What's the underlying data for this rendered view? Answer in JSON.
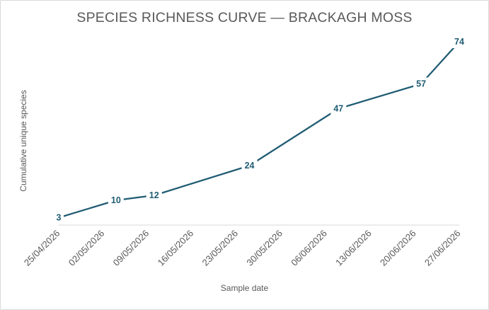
{
  "chart_data": {
    "type": "line",
    "title": "SPECIES RICHNESS CURVE — BRACKAGH MOSS",
    "xlabel": "Sample date",
    "ylabel": "Cumulative unique species",
    "x_tick_labels": [
      "25/04/2026",
      "02/05/2026",
      "09/05/2026",
      "16/05/2026",
      "23/05/2026",
      "30/05/2026",
      "06/06/2026",
      "13/06/2026",
      "20/06/2026",
      "27/06/2026"
    ],
    "xlim": [
      "25/04/2026",
      "27/06/2026"
    ],
    "ylim": [
      0,
      80
    ],
    "grid": false,
    "legend": "none",
    "line_color": "#1f5c73",
    "series": [
      {
        "points": [
          {
            "x": "25/04/2026",
            "y": 3,
            "label": "3"
          },
          {
            "x": "04/05/2026",
            "y": 10,
            "label": "10"
          },
          {
            "x": "10/05/2026",
            "y": 12,
            "label": "12"
          },
          {
            "x": "25/05/2026",
            "y": 24,
            "label": "24"
          },
          {
            "x": "08/06/2026",
            "y": 47,
            "label": "47"
          },
          {
            "x": "21/06/2026",
            "y": 57,
            "label": "57"
          },
          {
            "x": "27/06/2026",
            "y": 74,
            "label": "74"
          }
        ]
      }
    ]
  }
}
